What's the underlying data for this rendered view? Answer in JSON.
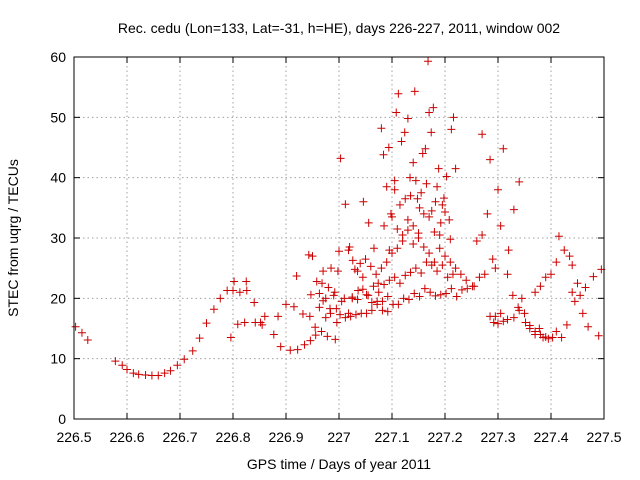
{
  "chart_data": {
    "type": "scatter",
    "title": "Rec. cedu (Lon=133, Lat=-31, h=HE), days 226-227, 2011, window 002",
    "xlabel": "GPS time / Days of year 2011",
    "ylabel": "STEC from uqrg / TECUs",
    "xlim": [
      226.5,
      227.5
    ],
    "ylim": [
      0,
      60
    ],
    "xticks": [
      226.5,
      226.6,
      226.7,
      226.8,
      226.9,
      227,
      227.1,
      227.2,
      227.3,
      227.4,
      227.5
    ],
    "xtick_labels": [
      "226.5",
      "226.6",
      "226.7",
      "226.8",
      "226.9",
      "227",
      "227.1",
      "227.2",
      "227.3",
      "227.4",
      "227.5"
    ],
    "yticks": [
      0,
      10,
      20,
      30,
      40,
      50,
      60
    ],
    "ytick_labels": [
      "0",
      "10",
      "20",
      "30",
      "40",
      "50",
      "60"
    ],
    "grid": true,
    "marker": "+",
    "marker_color": "#cc0000",
    "points": [
      [
        226.503,
        15.3
      ],
      [
        226.515,
        14.3
      ],
      [
        226.526,
        13.1
      ],
      [
        226.578,
        9.6
      ],
      [
        226.591,
        8.9
      ],
      [
        226.6,
        8.2
      ],
      [
        226.612,
        7.6
      ],
      [
        226.622,
        7.4
      ],
      [
        226.635,
        7.3
      ],
      [
        226.647,
        7.2
      ],
      [
        226.659,
        7.2
      ],
      [
        226.671,
        7.6
      ],
      [
        226.682,
        8.0
      ],
      [
        226.695,
        8.9
      ],
      [
        226.708,
        9.9
      ],
      [
        226.724,
        11.3
      ],
      [
        226.737,
        13.4
      ],
      [
        226.75,
        15.9
      ],
      [
        226.764,
        18.2
      ],
      [
        226.776,
        20.0
      ],
      [
        226.789,
        21.3
      ],
      [
        226.8,
        21.3
      ],
      [
        226.813,
        21.0
      ],
      [
        226.826,
        21.3
      ],
      [
        226.802,
        22.8
      ],
      [
        226.825,
        22.8
      ],
      [
        226.796,
        13.5
      ],
      [
        226.809,
        15.7
      ],
      [
        226.822,
        16.0
      ],
      [
        226.842,
        16.0
      ],
      [
        226.852,
        16.0
      ],
      [
        226.86,
        17.0
      ],
      [
        226.877,
        14.0
      ],
      [
        226.885,
        17.0
      ],
      [
        226.9,
        19.0
      ],
      [
        226.855,
        15.6
      ],
      [
        226.84,
        19.3
      ],
      [
        226.89,
        12.0
      ],
      [
        226.908,
        11.4
      ],
      [
        226.922,
        11.5
      ],
      [
        226.935,
        12.3
      ],
      [
        226.946,
        13.0
      ],
      [
        226.956,
        13.9
      ],
      [
        226.967,
        14.5
      ],
      [
        226.978,
        13.7
      ],
      [
        226.993,
        13.2
      ],
      [
        226.915,
        18.6
      ],
      [
        226.92,
        23.7
      ],
      [
        226.932,
        17.4
      ],
      [
        226.945,
        17.0
      ],
      [
        226.955,
        15.2
      ],
      [
        226.963,
        18.5
      ],
      [
        226.975,
        16.8
      ],
      [
        226.984,
        17.5
      ],
      [
        226.996,
        16.0
      ],
      [
        226.95,
        27.0
      ],
      [
        226.943,
        27.2
      ],
      [
        226.958,
        22.8
      ],
      [
        226.968,
        22.5
      ],
      [
        226.98,
        21.8
      ],
      [
        226.992,
        21.0
      ],
      [
        226.947,
        20.6
      ],
      [
        226.97,
        19.6
      ],
      [
        226.983,
        18.3
      ],
      [
        226.995,
        18.3
      ],
      [
        226.963,
        20.8
      ],
      [
        226.975,
        20.0
      ],
      [
        226.99,
        20.5
      ],
      [
        226.97,
        24.5
      ],
      [
        226.985,
        25.0
      ],
      [
        226.998,
        24.5
      ],
      [
        227.0,
        27.8
      ],
      [
        227.005,
        19.5
      ],
      [
        227.01,
        20.0
      ],
      [
        227.018,
        17.5
      ],
      [
        227.025,
        20.0
      ],
      [
        227.035,
        24.5
      ],
      [
        227.045,
        23.5
      ],
      [
        227.052,
        20.6
      ],
      [
        227.062,
        19.3
      ],
      [
        227.072,
        19.5
      ],
      [
        227.082,
        18.0
      ],
      [
        227.092,
        17.8
      ],
      [
        227.102,
        19.0
      ],
      [
        227.112,
        19.0
      ],
      [
        227.122,
        20.0
      ],
      [
        227.132,
        19.8
      ],
      [
        227.142,
        20.8
      ],
      [
        227.152,
        20.3
      ],
      [
        227.162,
        21.6
      ],
      [
        227.172,
        21.0
      ],
      [
        227.182,
        20.4
      ],
      [
        227.192,
        20.6
      ],
      [
        227.202,
        20.8
      ],
      [
        227.212,
        21.6
      ],
      [
        227.222,
        20.3
      ],
      [
        227.232,
        21.4
      ],
      [
        227.242,
        21.6
      ],
      [
        227.252,
        22.0
      ],
      [
        227.002,
        17.3
      ],
      [
        227.012,
        16.8
      ],
      [
        227.022,
        17.0
      ],
      [
        227.032,
        17.3
      ],
      [
        227.042,
        17.5
      ],
      [
        227.052,
        17.5
      ],
      [
        227.062,
        18.0
      ],
      [
        227.072,
        19.0
      ],
      [
        227.082,
        19.5
      ],
      [
        227.092,
        20.3
      ],
      [
        227.003,
        43.2
      ],
      [
        227.012,
        35.6
      ],
      [
        227.018,
        28.0
      ],
      [
        227.026,
        26.3
      ],
      [
        227.036,
        21.3
      ],
      [
        227.046,
        36.0
      ],
      [
        227.056,
        32.5
      ],
      [
        227.066,
        28.3
      ],
      [
        227.074,
        22.5
      ],
      [
        227.08,
        48.2
      ],
      [
        227.084,
        43.8
      ],
      [
        227.09,
        38.5
      ],
      [
        227.094,
        45.0
      ],
      [
        227.098,
        34.0
      ],
      [
        227.105,
        39.5
      ],
      [
        227.108,
        50.8
      ],
      [
        227.112,
        53.9
      ],
      [
        227.118,
        46.0
      ],
      [
        227.124,
        47.5
      ],
      [
        227.13,
        49.8
      ],
      [
        227.134,
        40.0
      ],
      [
        227.14,
        42.5
      ],
      [
        227.143,
        54.3
      ],
      [
        227.148,
        36.5
      ],
      [
        227.152,
        35.0
      ],
      [
        227.158,
        44.0
      ],
      [
        227.163,
        44.8
      ],
      [
        227.168,
        59.3
      ],
      [
        227.17,
        50.8
      ],
      [
        227.174,
        47.5
      ],
      [
        227.178,
        51.6
      ],
      [
        227.182,
        36.0
      ],
      [
        227.188,
        41.5
      ],
      [
        227.192,
        32.5
      ],
      [
        227.198,
        36.6
      ],
      [
        227.203,
        40.2
      ],
      [
        227.208,
        33.0
      ],
      [
        227.212,
        48.0
      ],
      [
        227.216,
        50.0
      ],
      [
        227.22,
        41.5
      ],
      [
        227.02,
        28.5
      ],
      [
        227.03,
        24.8
      ],
      [
        227.04,
        25.8
      ],
      [
        227.05,
        26.5
      ],
      [
        227.06,
        25.3
      ],
      [
        227.07,
        24.0
      ],
      [
        227.08,
        25.0
      ],
      [
        227.09,
        26.0
      ],
      [
        227.1,
        27.5
      ],
      [
        227.11,
        28.3
      ],
      [
        227.12,
        30.5
      ],
      [
        227.13,
        31.3
      ],
      [
        227.14,
        29.0
      ],
      [
        227.15,
        30.0
      ],
      [
        227.16,
        28.5
      ],
      [
        227.17,
        27.5
      ],
      [
        227.18,
        26.0
      ],
      [
        227.19,
        28.3
      ],
      [
        227.2,
        27.0
      ],
      [
        227.21,
        26.0
      ],
      [
        227.22,
        25.0
      ],
      [
        227.23,
        24.0
      ],
      [
        227.24,
        23.0
      ],
      [
        227.025,
        20.2
      ],
      [
        227.035,
        19.8
      ],
      [
        227.045,
        21.5
      ],
      [
        227.055,
        20.5
      ],
      [
        227.065,
        22.0
      ],
      [
        227.075,
        21.0
      ],
      [
        227.085,
        22.3
      ],
      [
        227.095,
        23.0
      ],
      [
        227.105,
        23.5
      ],
      [
        227.115,
        22.5
      ],
      [
        227.125,
        23.8
      ],
      [
        227.135,
        24.3
      ],
      [
        227.145,
        25.0
      ],
      [
        227.155,
        24.2
      ],
      [
        227.165,
        26.0
      ],
      [
        227.175,
        25.5
      ],
      [
        227.185,
        24.5
      ],
      [
        227.195,
        25.5
      ],
      [
        227.205,
        23.5
      ],
      [
        227.215,
        24.0
      ],
      [
        227.1,
        33.5
      ],
      [
        227.11,
        31.5
      ],
      [
        227.12,
        29.5
      ],
      [
        227.13,
        33.0
      ],
      [
        227.14,
        32.0
      ],
      [
        227.15,
        30.8
      ],
      [
        227.16,
        34.0
      ],
      [
        227.17,
        33.5
      ],
      [
        227.18,
        31.0
      ],
      [
        227.19,
        30.5
      ],
      [
        227.2,
        34.3
      ],
      [
        227.21,
        29.8
      ],
      [
        227.085,
        32.0
      ],
      [
        227.095,
        28.0
      ],
      [
        227.105,
        38.0
      ],
      [
        227.115,
        35.5
      ],
      [
        227.125,
        36.5
      ],
      [
        227.135,
        37.0
      ],
      [
        227.145,
        39.5
      ],
      [
        227.155,
        37.5
      ],
      [
        227.165,
        39.0
      ],
      [
        227.175,
        34.5
      ],
      [
        227.185,
        38.5
      ],
      [
        227.195,
        35.5
      ],
      [
        227.26,
        29.5
      ],
      [
        227.27,
        30.5
      ],
      [
        227.28,
        34.0
      ],
      [
        227.29,
        26.5
      ],
      [
        227.295,
        25.0
      ],
      [
        227.3,
        38.0
      ],
      [
        227.305,
        32.0
      ],
      [
        227.31,
        44.8
      ],
      [
        227.32,
        28.0
      ],
      [
        227.33,
        34.7
      ],
      [
        227.34,
        39.3
      ],
      [
        227.27,
        47.2
      ],
      [
        227.285,
        43.0
      ],
      [
        227.255,
        22.0
      ],
      [
        227.265,
        23.5
      ],
      [
        227.275,
        24.0
      ],
      [
        227.285,
        17.0
      ],
      [
        227.292,
        16.0
      ],
      [
        227.3,
        15.8
      ],
      [
        227.31,
        16.2
      ],
      [
        227.318,
        24.0
      ],
      [
        227.328,
        20.5
      ],
      [
        227.338,
        18.5
      ],
      [
        227.345,
        20.0
      ],
      [
        227.352,
        16.0
      ],
      [
        227.36,
        15.0
      ],
      [
        227.37,
        14.5
      ],
      [
        227.378,
        15.0
      ],
      [
        227.385,
        13.5
      ],
      [
        227.395,
        13.3
      ],
      [
        227.403,
        13.5
      ],
      [
        227.41,
        14.5
      ],
      [
        227.42,
        13.5
      ],
      [
        227.43,
        15.6
      ],
      [
        227.44,
        21.0
      ],
      [
        227.45,
        22.5
      ],
      [
        227.46,
        17.5
      ],
      [
        227.47,
        15.3
      ],
      [
        227.48,
        23.6
      ],
      [
        227.49,
        13.8
      ],
      [
        227.495,
        24.8
      ],
      [
        227.295,
        17.0
      ],
      [
        227.305,
        17.5
      ],
      [
        227.318,
        16.5
      ],
      [
        227.33,
        16.8
      ],
      [
        227.34,
        18.0
      ],
      [
        227.35,
        17.5
      ],
      [
        227.36,
        15.5
      ],
      [
        227.37,
        14.0
      ],
      [
        227.38,
        14.0
      ],
      [
        227.39,
        13.6
      ],
      [
        227.37,
        21.0
      ],
      [
        227.38,
        22.0
      ],
      [
        227.39,
        23.5
      ],
      [
        227.4,
        24.0
      ],
      [
        227.41,
        26.0
      ],
      [
        227.415,
        30.3
      ],
      [
        227.425,
        28.0
      ],
      [
        227.435,
        27.0
      ],
      [
        227.44,
        25.5
      ],
      [
        227.445,
        19.5
      ],
      [
        227.455,
        20.5
      ],
      [
        227.465,
        21.8
      ]
    ]
  }
}
